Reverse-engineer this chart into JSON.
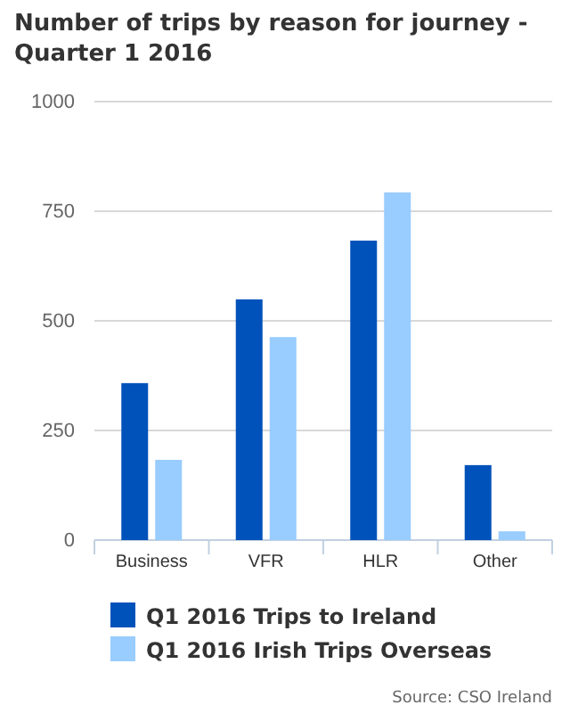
{
  "chart_data": {
    "type": "bar",
    "title": "Number of trips by reason for journey - Quarter 1 2016",
    "categories": [
      "Business",
      "VFR",
      "HLR",
      "Other"
    ],
    "series": [
      {
        "name": "Q1 2016 Trips to Ireland",
        "color": "#0052bb",
        "values": [
          358,
          549,
          683,
          171
        ]
      },
      {
        "name": "Q1 2016 Irish Trips Overseas",
        "color": "#99ccff",
        "values": [
          183,
          463,
          793,
          20
        ]
      }
    ],
    "ylim": [
      0,
      1000
    ],
    "yticks": [
      0,
      250,
      500,
      750,
      1000
    ],
    "grid": "y",
    "legend": "bottom",
    "annotations": [
      "Source: CSO Ireland"
    ]
  }
}
